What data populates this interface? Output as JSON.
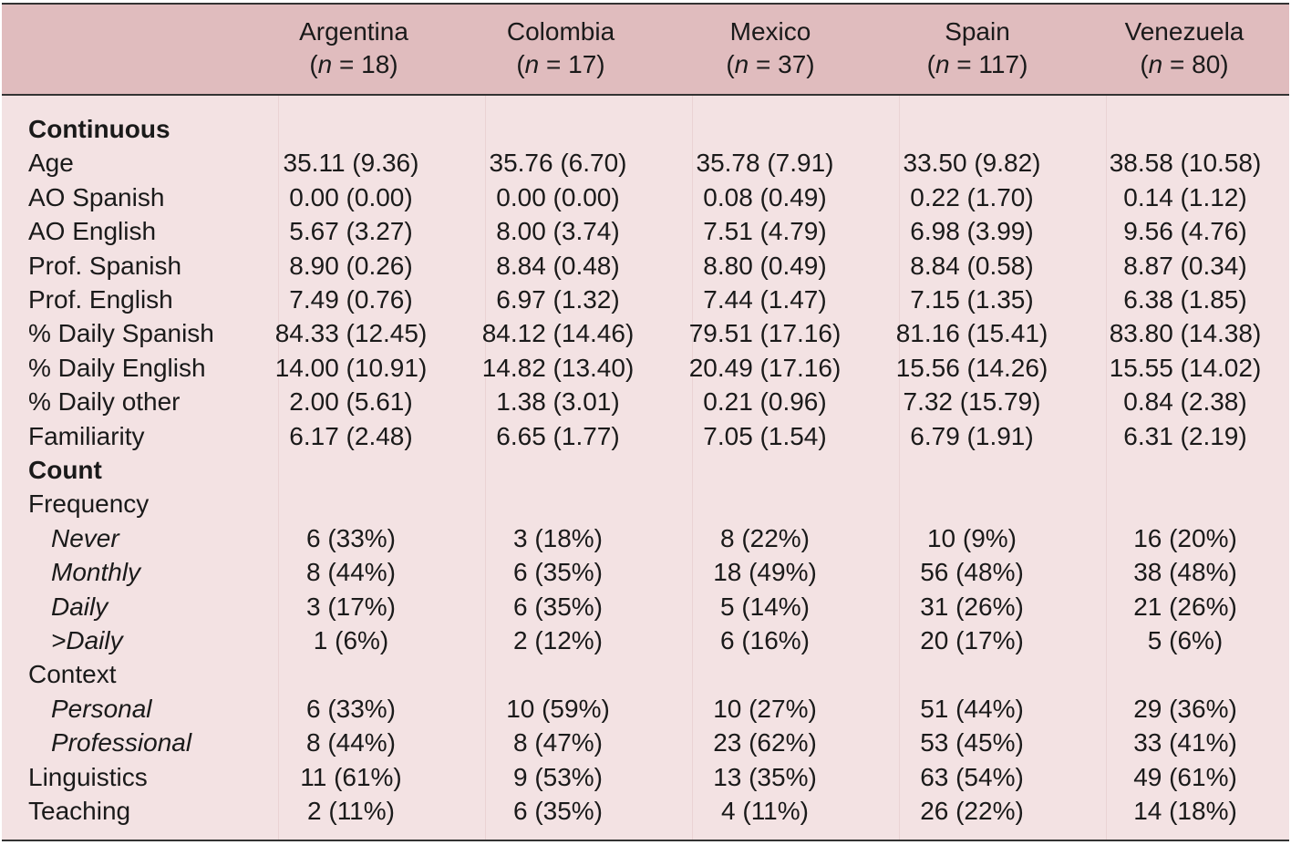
{
  "columns": [
    {
      "name": "Argentina",
      "n_prefix": "(",
      "n_var": "n",
      "n_suffix": " = 18)"
    },
    {
      "name": "Colombia",
      "n_prefix": "(",
      "n_var": "n",
      "n_suffix": " = 17)"
    },
    {
      "name": "Mexico",
      "n_prefix": "(",
      "n_var": "n",
      "n_suffix": " = 37)"
    },
    {
      "name": "Spain",
      "n_prefix": "(",
      "n_var": "n",
      "n_suffix": " = 117)"
    },
    {
      "name": "Venezuela",
      "n_prefix": "(",
      "n_var": "n",
      "n_suffix": " = 80)"
    }
  ],
  "rows": [
    {
      "label": "Continuous",
      "style": "bold",
      "cells": [
        "",
        "",
        "",
        "",
        ""
      ]
    },
    {
      "label": "Age",
      "style": "normal",
      "cells": [
        "35.11 (9.36)",
        "35.76 (6.70)",
        "35.78 (7.91)",
        "33.50 (9.82)",
        "38.58 (10.58)"
      ]
    },
    {
      "label": "AO Spanish",
      "style": "normal",
      "cells": [
        "0.00 (0.00)",
        "0.00 (0.00)",
        "0.08 (0.49)",
        "0.22 (1.70)",
        "0.14 (1.12)"
      ]
    },
    {
      "label": "AO English",
      "style": "normal",
      "cells": [
        "5.67 (3.27)",
        "8.00 (3.74)",
        "7.51 (4.79)",
        "6.98 (3.99)",
        "9.56 (4.76)"
      ]
    },
    {
      "label": "Prof. Spanish",
      "style": "normal",
      "cells": [
        "8.90 (0.26)",
        "8.84 (0.48)",
        "8.80 (0.49)",
        "8.84 (0.58)",
        "8.87 (0.34)"
      ]
    },
    {
      "label": "Prof. English",
      "style": "normal",
      "cells": [
        "7.49 (0.76)",
        "6.97 (1.32)",
        "7.44 (1.47)",
        "7.15 (1.35)",
        "6.38 (1.85)"
      ]
    },
    {
      "label": "% Daily Spanish",
      "style": "normal",
      "cells": [
        "84.33 (12.45)",
        "84.12 (14.46)",
        "79.51 (17.16)",
        "81.16 (15.41)",
        "83.80 (14.38)"
      ]
    },
    {
      "label": "% Daily English",
      "style": "normal",
      "cells": [
        "14.00 (10.91)",
        "14.82 (13.40)",
        "20.49 (17.16)",
        "15.56 (14.26)",
        "15.55 (14.02)"
      ]
    },
    {
      "label": "% Daily other",
      "style": "normal",
      "cells": [
        "2.00 (5.61)",
        "1.38 (3.01)",
        "0.21 (0.96)",
        "7.32 (15.79)",
        "0.84 (2.38)"
      ]
    },
    {
      "label": "Familiarity",
      "style": "normal",
      "cells": [
        "6.17 (2.48)",
        "6.65 (1.77)",
        "7.05 (1.54)",
        "6.79 (1.91)",
        "6.31 (2.19)"
      ]
    },
    {
      "label": "Count",
      "style": "bold",
      "cells": [
        "",
        "",
        "",
        "",
        ""
      ]
    },
    {
      "label": "Frequency",
      "style": "normal",
      "cells": [
        "",
        "",
        "",
        "",
        ""
      ]
    },
    {
      "label": "Never",
      "style": "italic",
      "cells": [
        "6 (33%)",
        "3 (18%)",
        "8 (22%)",
        "10 (9%)",
        "16 (20%)"
      ]
    },
    {
      "label": "Monthly",
      "style": "italic",
      "cells": [
        "8 (44%)",
        "6 (35%)",
        "18 (49%)",
        "56 (48%)",
        "38 (48%)"
      ]
    },
    {
      "label": "Daily",
      "style": "italic",
      "cells": [
        "3 (17%)",
        "6 (35%)",
        "5 (14%)",
        "31 (26%)",
        "21 (26%)"
      ]
    },
    {
      "label": ">Daily",
      "style": "italic",
      "cells": [
        "1 (6%)",
        "2 (12%)",
        "6 (16%)",
        "20 (17%)",
        "5 (6%)"
      ]
    },
    {
      "label": "Context",
      "style": "normal",
      "cells": [
        "",
        "",
        "",
        "",
        ""
      ]
    },
    {
      "label": "Personal",
      "style": "italic",
      "cells": [
        "6 (33%)",
        "10 (59%)",
        "10 (27%)",
        "51 (44%)",
        "29 (36%)"
      ]
    },
    {
      "label": "Professional",
      "style": "italic",
      "cells": [
        "8 (44%)",
        "8 (47%)",
        "23 (62%)",
        "53 (45%)",
        "33 (41%)"
      ]
    },
    {
      "label": "Linguistics",
      "style": "normal",
      "cells": [
        "11 (61%)",
        "9 (53%)",
        "13 (35%)",
        "63 (54%)",
        "49 (61%)"
      ]
    },
    {
      "label": "Teaching",
      "style": "normal",
      "cells": [
        "2 (11%)",
        "6 (35%)",
        "4 (11%)",
        "26 (22%)",
        "14 (18%)"
      ]
    }
  ]
}
